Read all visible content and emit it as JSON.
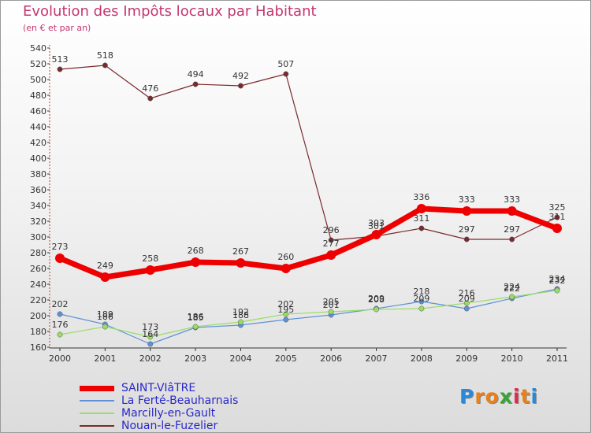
{
  "title": "Evolution des Impôts locaux par Habitant",
  "subtitle": "(en € et par an)",
  "brand": {
    "letters": [
      "P",
      "r",
      "o",
      "x",
      "i",
      "t",
      "i"
    ],
    "colors": [
      "#2a88d8",
      "#e8801c",
      "#e8801c",
      "#3aa33a",
      "#d8304a",
      "#e8801c",
      "#2a88d8"
    ]
  },
  "chart_data": {
    "type": "line",
    "title": "Evolution des Impôts locaux par Habitant",
    "subtitle": "(en € et par an)",
    "xlabel": "",
    "ylabel": "",
    "ylim": [
      160,
      540
    ],
    "ystep": 20,
    "grid": false,
    "legend_position": "bottom-left",
    "categories": [
      "2000",
      "2001",
      "2002",
      "2003",
      "2004",
      "2005",
      "2006",
      "2007",
      "2008",
      "2009",
      "2010",
      "2011"
    ],
    "series": [
      {
        "name": "SAINT-VIâTRE",
        "color": "#ee0000",
        "values": [
          273,
          249,
          258,
          268,
          267,
          260,
          277,
          303,
          336,
          333,
          333,
          311
        ],
        "label_values": [
          "273",
          "249",
          "258",
          "268",
          "267",
          "260",
          "277",
          "303",
          "336",
          "333",
          "333",
          "311"
        ]
      },
      {
        "name": "La Ferté-Beauharnais",
        "color": "#5e92d6",
        "values": [
          202,
          189,
          164,
          185,
          188,
          195,
          201,
          209,
          218,
          209,
          222,
          234
        ],
        "label_values": [
          "202",
          "189",
          "164",
          "185",
          "188",
          "195",
          "201",
          "209",
          "218",
          "209",
          "222",
          "234"
        ]
      },
      {
        "name": "Marcilly-en-Gault",
        "color": "#99dd66",
        "values": [
          176,
          186,
          173,
          186,
          192,
          202,
          205,
          208,
          209,
          216,
          224,
          232
        ],
        "label_values": [
          "176",
          "186",
          "173",
          "186",
          "192",
          "202",
          "205",
          "208",
          "209",
          "216",
          "224",
          "232"
        ]
      },
      {
        "name": "Nouan-le-Fuzelier",
        "color": "#7a2a2e",
        "values": [
          513,
          518,
          476,
          494,
          492,
          507,
          296,
          301,
          311,
          297,
          297,
          325
        ],
        "label_values": [
          "513",
          "518",
          "476",
          "494",
          "492",
          "507",
          "296",
          "301",
          "311",
          "297",
          "297",
          "325"
        ]
      }
    ]
  }
}
